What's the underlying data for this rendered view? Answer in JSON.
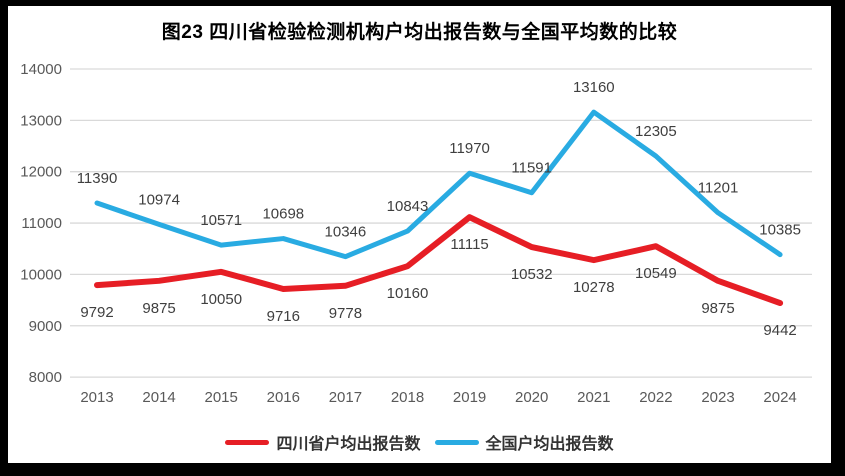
{
  "title": "图23   四川省检验检测机构户均出报告数与全国平均数的比较",
  "chart_data": {
    "type": "line",
    "title": "图23   四川省检验检测机构户均出报告数与全国平均数的比较",
    "categories": [
      "2013",
      "2014",
      "2015",
      "2016",
      "2017",
      "2018",
      "2019",
      "2020",
      "2021",
      "2022",
      "2023",
      "2024"
    ],
    "series": [
      {
        "name": "四川省户均出报告数",
        "color": "#e61e25",
        "stroke_width": 6,
        "label_position": "below",
        "values": [
          9792,
          9875,
          10050,
          9716,
          9778,
          10160,
          11115,
          10532,
          10278,
          10549,
          9875,
          9442
        ]
      },
      {
        "name": "全国户均出报告数",
        "color": "#29abe2",
        "stroke_width": 5,
        "label_position": "above",
        "values": [
          11390,
          10974,
          10571,
          10698,
          10346,
          10843,
          11970,
          11591,
          13160,
          12305,
          11201,
          10385
        ]
      }
    ],
    "ylim": [
      8000,
      14000
    ],
    "yticks": [
      14000,
      13000,
      12000,
      11000,
      10000,
      9000,
      8000
    ],
    "grid": true,
    "legend_position": "bottom",
    "colors": {
      "gridline": "#d9d9d9",
      "tick_text": "#595959",
      "data_label": "#3f3f3f",
      "background": "#ffffff",
      "frame": "#000000"
    }
  }
}
